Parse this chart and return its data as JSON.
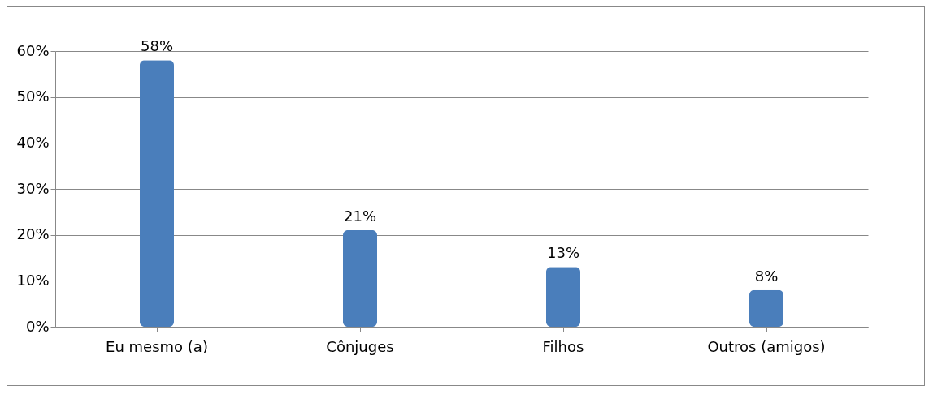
{
  "chart_data": {
    "type": "bar",
    "categories": [
      "Eu mesmo (a)",
      "Cônjuges",
      "Filhos",
      "Outros (amigos)"
    ],
    "values": [
      58,
      21,
      13,
      8
    ],
    "value_labels": [
      "58%",
      "21%",
      "13%",
      "8%"
    ],
    "color": "#4a7ebb",
    "ylim": [
      0,
      60
    ],
    "yticks": [
      {
        "value": 0,
        "label": "0%"
      },
      {
        "value": 10,
        "label": "10%"
      },
      {
        "value": 20,
        "label": "20%"
      },
      {
        "value": 30,
        "label": "30%"
      },
      {
        "value": 40,
        "label": "40%"
      },
      {
        "value": 50,
        "label": "50%"
      },
      {
        "value": 60,
        "label": "60%"
      }
    ],
    "grid": "y"
  }
}
